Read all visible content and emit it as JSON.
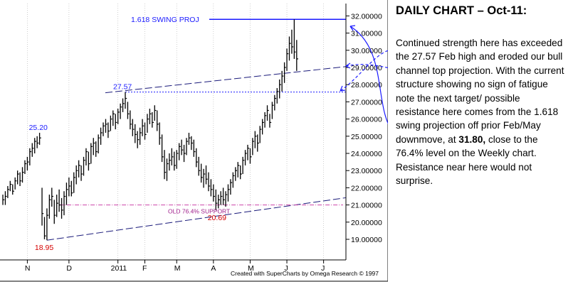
{
  "panel": {
    "title": "DAILY CHART – Oct-11:",
    "text_part1": "Continued strength here has exceeded the 27.57 Feb high and eroded our bull channel top projection. With the current structure showing no sign of fatigue note the next target/ possible resistance here comes from the 1.618 swing projection off prior Feb/May downmove, at ",
    "text_bold": "31.80,",
    "text_part2": " close to the 76.4% level on the Weekly chart. Resistance near here would not surprise."
  },
  "credit": "Created with SuperCharts by Omega Research © 1997",
  "chart_data": {
    "type": "ohlc",
    "ylim": [
      18.2,
      32.4
    ],
    "y_ticks": [
      {
        "value": 19,
        "label": "19.00000"
      },
      {
        "value": 20,
        "label": "20.00000"
      },
      {
        "value": 21,
        "label": "21.00000"
      },
      {
        "value": 22,
        "label": "22.00000"
      },
      {
        "value": 23,
        "label": "23.00000"
      },
      {
        "value": 24,
        "label": "24.00000"
      },
      {
        "value": 25,
        "label": "25.00000"
      },
      {
        "value": 26,
        "label": "26.00000"
      },
      {
        "value": 27,
        "label": "27.00000"
      },
      {
        "value": 28,
        "label": "28.00000"
      },
      {
        "value": 29,
        "label": "29.00000"
      },
      {
        "value": 30,
        "label": "30.00000"
      },
      {
        "value": 31,
        "label": "31.00000"
      },
      {
        "value": 32,
        "label": "32.00000"
      }
    ],
    "x_ticks": [
      {
        "index": 10,
        "label": "N"
      },
      {
        "index": 27,
        "label": "D"
      },
      {
        "index": 47,
        "label": "2011"
      },
      {
        "index": 58,
        "label": "F"
      },
      {
        "index": 71,
        "label": "M"
      },
      {
        "index": 86,
        "label": "A"
      },
      {
        "index": 101,
        "label": "M"
      },
      {
        "index": 116,
        "label": "J"
      },
      {
        "index": 131,
        "label": "J"
      }
    ],
    "bars": [
      [
        21.6,
        21.0,
        21.3
      ],
      [
        21.8,
        21.0,
        21.5
      ],
      [
        22.1,
        21.4,
        21.9
      ],
      [
        22.4,
        21.8,
        22.2
      ],
      [
        22.2,
        21.6,
        21.8
      ],
      [
        22.6,
        21.9,
        22.4
      ],
      [
        23.0,
        22.2,
        22.8
      ],
      [
        22.9,
        22.1,
        22.4
      ],
      [
        23.2,
        22.3,
        22.9
      ],
      [
        23.6,
        22.8,
        23.4
      ],
      [
        23.8,
        23.0,
        23.5
      ],
      [
        24.3,
        23.3,
        24.1
      ],
      [
        24.6,
        23.8,
        24.3
      ],
      [
        24.9,
        24.0,
        24.7
      ],
      [
        25.0,
        24.3,
        24.6
      ],
      [
        25.2,
        24.5,
        24.9
      ],
      [
        22.0,
        19.8,
        20.5
      ],
      [
        20.3,
        19.0,
        19.2
      ],
      [
        20.8,
        18.95,
        20.4
      ],
      [
        21.6,
        20.2,
        21.3
      ],
      [
        22.0,
        20.9,
        21.5
      ],
      [
        21.3,
        19.9,
        20.4
      ],
      [
        21.6,
        20.3,
        21.1
      ],
      [
        21.9,
        20.6,
        21.0
      ],
      [
        21.4,
        20.2,
        20.7
      ],
      [
        21.8,
        20.4,
        21.5
      ],
      [
        22.3,
        21.0,
        21.9
      ],
      [
        22.6,
        21.5,
        22.1
      ],
      [
        22.4,
        21.5,
        21.7
      ],
      [
        22.9,
        21.7,
        22.6
      ],
      [
        23.3,
        22.2,
        23.0
      ],
      [
        23.6,
        22.6,
        23.3
      ],
      [
        23.3,
        22.4,
        22.8
      ],
      [
        23.8,
        22.7,
        23.6
      ],
      [
        24.3,
        23.3,
        24.1
      ],
      [
        24.1,
        23.0,
        23.4
      ],
      [
        24.6,
        23.4,
        24.4
      ],
      [
        24.9,
        23.9,
        24.6
      ],
      [
        24.7,
        23.8,
        24.1
      ],
      [
        25.1,
        24.0,
        24.9
      ],
      [
        25.5,
        24.5,
        25.2
      ],
      [
        25.8,
        25.0,
        25.6
      ],
      [
        26.0,
        25.2,
        25.7
      ],
      [
        25.8,
        24.9,
        25.3
      ],
      [
        26.2,
        25.3,
        26.0
      ],
      [
        26.5,
        25.6,
        26.3
      ],
      [
        26.3,
        25.4,
        25.8
      ],
      [
        26.6,
        25.7,
        26.4
      ],
      [
        26.9,
        26.0,
        26.7
      ],
      [
        27.2,
        26.4,
        26.9
      ],
      [
        27.57,
        26.6,
        27.2
      ],
      [
        27.0,
        26.0,
        26.3
      ],
      [
        26.5,
        25.4,
        25.7
      ],
      [
        26.0,
        25.0,
        25.4
      ],
      [
        25.7,
        24.6,
        25.1
      ],
      [
        25.3,
        24.3,
        24.8
      ],
      [
        25.5,
        24.5,
        25.2
      ],
      [
        26.0,
        25.0,
        25.6
      ],
      [
        25.8,
        24.8,
        25.1
      ],
      [
        26.3,
        25.2,
        26.0
      ],
      [
        26.6,
        25.7,
        26.3
      ],
      [
        26.4,
        25.5,
        25.8
      ],
      [
        26.8,
        25.9,
        26.5
      ],
      [
        26.5,
        25.3,
        25.7
      ],
      [
        25.8,
        24.5,
        24.9
      ],
      [
        25.1,
        23.5,
        23.8
      ],
      [
        24.2,
        22.5,
        22.9
      ],
      [
        23.7,
        22.4,
        23.4
      ],
      [
        24.0,
        23.0,
        23.6
      ],
      [
        24.3,
        23.3,
        23.8
      ],
      [
        24.1,
        23.0,
        23.3
      ],
      [
        24.2,
        23.1,
        24.0
      ],
      [
        24.6,
        23.6,
        24.4
      ],
      [
        24.8,
        23.9,
        24.2
      ],
      [
        24.5,
        23.5,
        24.0
      ],
      [
        24.9,
        23.9,
        24.7
      ],
      [
        25.2,
        24.5,
        24.9
      ],
      [
        25.0,
        24.2,
        24.6
      ],
      [
        24.8,
        23.8,
        24.1
      ],
      [
        24.3,
        23.2,
        23.5
      ],
      [
        23.8,
        22.7,
        23.0
      ],
      [
        23.4,
        22.3,
        22.6
      ],
      [
        23.1,
        22.0,
        22.8
      ],
      [
        23.3,
        22.2,
        22.5
      ],
      [
        22.9,
        21.8,
        22.1
      ],
      [
        22.5,
        21.5,
        21.9
      ],
      [
        22.2,
        21.2,
        21.5
      ],
      [
        21.9,
        20.69,
        21.1
      ],
      [
        21.6,
        20.8,
        21.3
      ],
      [
        21.8,
        21.0,
        21.5
      ],
      [
        22.0,
        21.0,
        21.3
      ],
      [
        21.8,
        20.9,
        21.6
      ],
      [
        22.2,
        21.2,
        21.9
      ],
      [
        22.5,
        21.6,
        22.3
      ],
      [
        22.9,
        22.0,
        22.7
      ],
      [
        23.2,
        22.4,
        23.0
      ],
      [
        23.5,
        22.6,
        23.3
      ],
      [
        23.3,
        22.5,
        22.8
      ],
      [
        23.8,
        22.8,
        23.6
      ],
      [
        24.2,
        23.3,
        24.0
      ],
      [
        24.5,
        23.6,
        24.3
      ],
      [
        24.3,
        23.4,
        23.8
      ],
      [
        24.9,
        23.9,
        24.7
      ],
      [
        25.3,
        24.3,
        25.0
      ],
      [
        25.1,
        24.1,
        24.6
      ],
      [
        25.6,
        24.6,
        25.4
      ],
      [
        26.0,
        25.1,
        25.8
      ],
      [
        26.4,
        25.5,
        26.2
      ],
      [
        26.8,
        25.9,
        26.5
      ],
      [
        26.3,
        25.5,
        25.8
      ],
      [
        27.0,
        26.0,
        26.8
      ],
      [
        27.4,
        26.5,
        27.2
      ],
      [
        27.8,
        26.9,
        27.6
      ],
      [
        28.3,
        27.2,
        28.0
      ],
      [
        28.8,
        27.6,
        28.5
      ],
      [
        29.3,
        28.1,
        29.0
      ],
      [
        30.1,
        28.8,
        29.8
      ],
      [
        30.8,
        29.4,
        30.4
      ],
      [
        31.2,
        29.8,
        30.2
      ],
      [
        31.8,
        29.5,
        29.9
      ],
      [
        30.6,
        28.8,
        29.5
      ]
    ],
    "annotations": {
      "swing_proj_label": "1.618 SWING PROJ",
      "swing_proj_value": 31.8,
      "feb_high_label": "27.57",
      "feb_high_value": 27.57,
      "nov_high_label": "25.20",
      "nov_high_value": 25.2,
      "nov_low_label": "18.95",
      "nov_low_value": 18.95,
      "may_low_label": "20.69",
      "may_low_value": 20.69,
      "support_label": "OLD 76.4% SUPPORT",
      "support_value": 21.0
    },
    "colors": {
      "bars": "#000000",
      "annotation_blue": "#1a1aff",
      "channel_line": "#1a1a7a",
      "support_line": "#cc44aa",
      "support_text": "#a0208c",
      "low_label": "#d40000"
    }
  }
}
